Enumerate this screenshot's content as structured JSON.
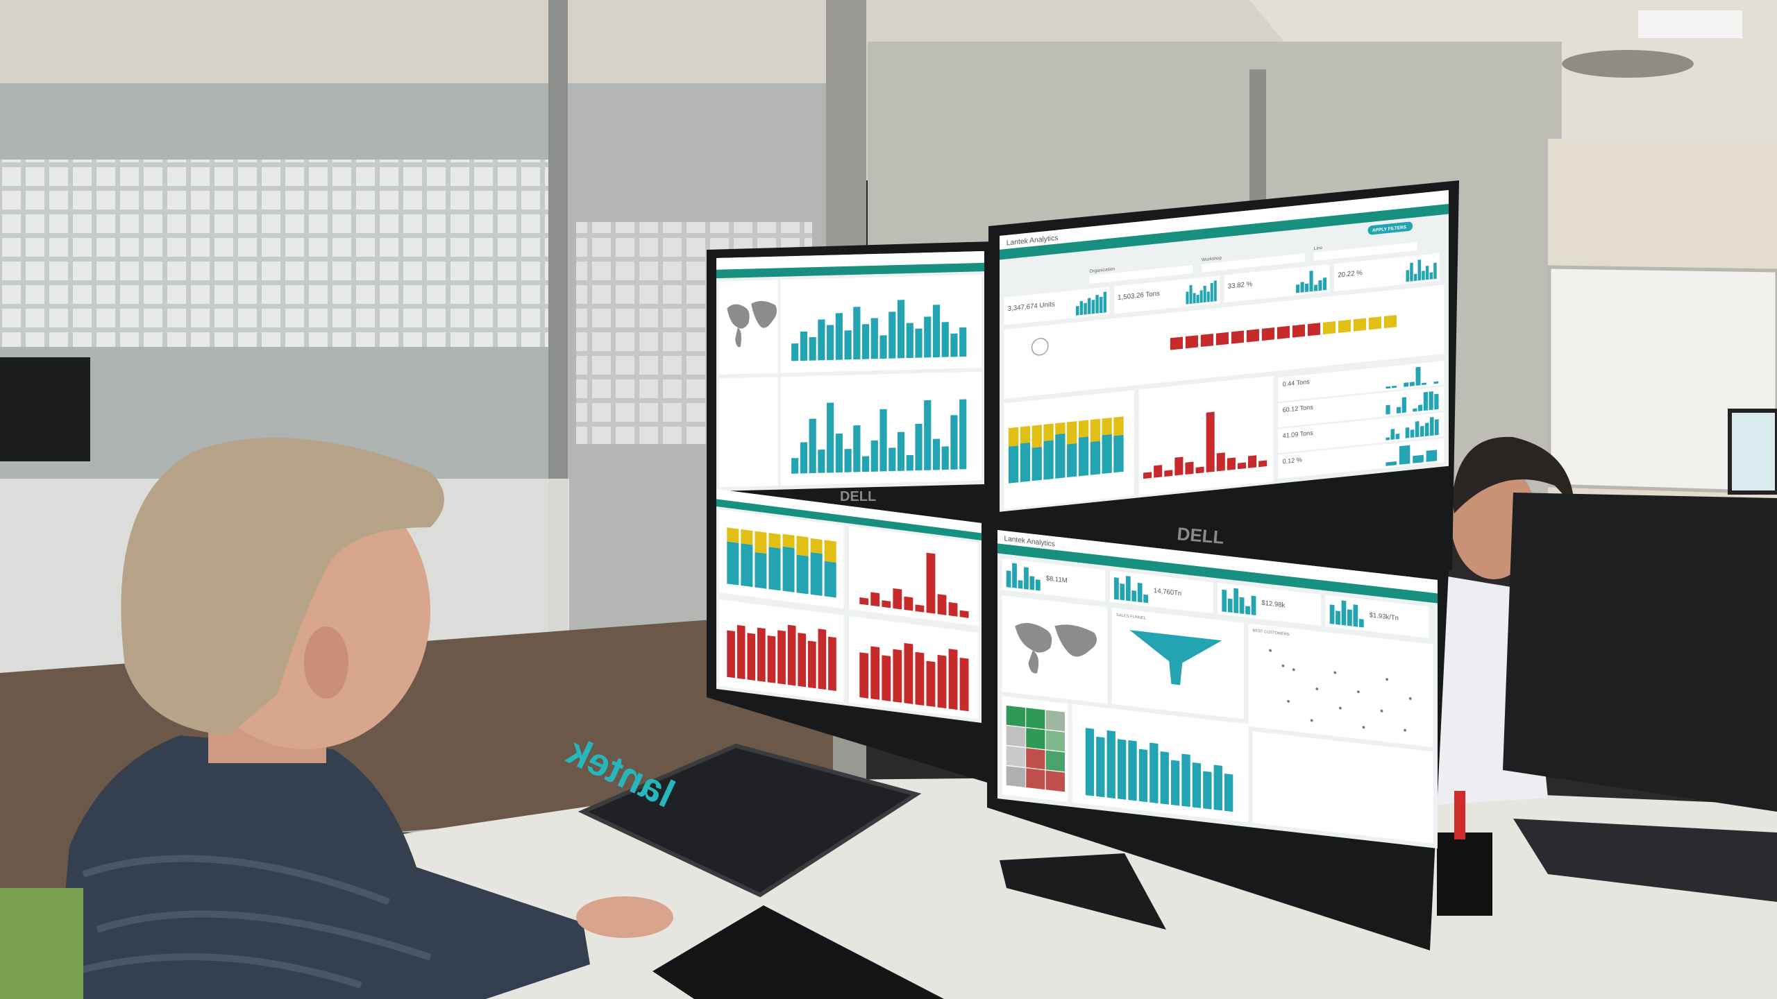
{
  "scene": {
    "laptop_brand": "lantek",
    "monitor_brand": "DELL"
  },
  "colors": {
    "teal_header": "#17907f",
    "bar_teal": "#22a4b2",
    "bar_red": "#c62a2a",
    "bar_yellow": "#e2bf14",
    "bar_green": "#2f9a55",
    "screen_bg": "#eef1f2"
  },
  "screens": {
    "top_left": {
      "bars_a": [
        3,
        5,
        4,
        7,
        6,
        8,
        5,
        9,
        6,
        7,
        4,
        8,
        10,
        6,
        5,
        7,
        9,
        6,
        4,
        5
      ],
      "bars_b": [
        2,
        4,
        7,
        3,
        9,
        5,
        3,
        6,
        2,
        4,
        8,
        3,
        5,
        2,
        6,
        9,
        4,
        3,
        7,
        9
      ]
    },
    "top_right": {
      "title": "Lantek Analytics",
      "apply_filters": "APPLY FILTERS",
      "filters": [
        {
          "label": "Organization"
        },
        {
          "label": "Workshop"
        },
        {
          "label": "Line"
        }
      ],
      "kpis": [
        {
          "value": "3,347,674 Units",
          "bars": [
            4,
            6,
            5,
            7,
            6,
            8,
            7,
            9
          ]
        },
        {
          "value": "1,503.26 Tons",
          "bars": [
            6,
            9,
            5,
            4,
            6,
            8,
            5,
            9,
            10
          ]
        },
        {
          "value": "33.82 %",
          "bars": [
            4,
            5,
            4,
            10,
            3,
            5,
            6
          ]
        },
        {
          "value": "20.22 %",
          "bars": [
            5,
            8,
            3,
            9,
            4,
            6,
            3,
            7
          ]
        }
      ],
      "timeline": [
        "red",
        "red",
        "red",
        "red",
        "red",
        "red",
        "red",
        "red",
        "red",
        "red",
        "yellow",
        "yellow",
        "yellow",
        "yellow",
        "yellow"
      ],
      "stacked": [
        [
          6,
          3
        ],
        [
          7,
          3
        ],
        [
          6,
          4
        ],
        [
          7,
          3
        ],
        [
          8,
          2
        ],
        [
          6,
          4
        ],
        [
          7,
          3
        ],
        [
          6,
          4
        ],
        [
          7,
          3
        ],
        [
          6,
          3
        ]
      ],
      "histogram": [
        1,
        2,
        1,
        3,
        2,
        1,
        10,
        3,
        2,
        1,
        2,
        1
      ],
      "side_kpis": [
        {
          "value": "0.44 Tons",
          "bars": [
            1,
            1,
            0,
            2,
            2,
            9,
            1,
            0,
            1
          ]
        },
        {
          "value": "60.12 Tons",
          "bars": [
            3,
            0,
            2,
            5,
            0,
            1,
            2,
            6,
            6,
            5
          ]
        },
        {
          "value": "41.09 Tons",
          "bars": [
            1,
            4,
            2,
            0,
            4,
            3,
            6,
            4,
            5,
            7,
            6
          ]
        },
        {
          "value": "0.12 %",
          "bars": [
            1,
            5,
            2,
            3
          ]
        }
      ]
    },
    "bottom_left": {
      "stacked": [
        [
          6,
          2,
          1
        ],
        [
          6,
          2,
          1
        ],
        [
          5,
          3,
          1
        ],
        [
          6,
          2,
          1
        ],
        [
          7,
          2,
          1
        ],
        [
          6,
          3,
          1
        ],
        [
          6,
          2,
          1
        ],
        [
          5,
          3,
          1
        ]
      ],
      "histogram": [
        1,
        2,
        1,
        3,
        2,
        1,
        9,
        3,
        2,
        1
      ],
      "red_a": [
        7,
        8,
        7,
        8,
        7,
        8,
        9,
        8,
        7,
        9,
        8
      ],
      "red_b": [
        6,
        7,
        6,
        7,
        8,
        7,
        6,
        7,
        8,
        7
      ]
    },
    "bottom_right": {
      "title": "Lantek Analytics",
      "kpis": [
        {
          "value": "$8.11M",
          "bars": [
            6,
            9,
            3,
            8,
            5,
            4
          ]
        },
        {
          "value": "14,760Tn",
          "bars": [
            8,
            6,
            9,
            4,
            7,
            3
          ]
        },
        {
          "value": "$12.98k",
          "bars": [
            8,
            5,
            9,
            6,
            3,
            7
          ]
        },
        {
          "value": "$1.93k/Tn",
          "bars": [
            7,
            5,
            9,
            6,
            8,
            3
          ]
        }
      ],
      "panel_titles": [
        "SALES FUNNEL",
        "BEST CUSTOMERS"
      ],
      "bars": [
        9,
        8,
        9,
        8,
        8,
        7,
        8,
        7,
        6,
        7,
        6,
        5,
        6,
        5
      ],
      "heatmap": [
        "#2f9a55",
        "#2f9a55",
        "#9fb7a0",
        "#c0c0c0",
        "#2f9a55",
        "#7fb88a",
        "#c9c9c9",
        "#c0504d",
        "#4aa36a",
        "#b0b0b0",
        "#c0504d",
        "#c0504d"
      ]
    }
  }
}
